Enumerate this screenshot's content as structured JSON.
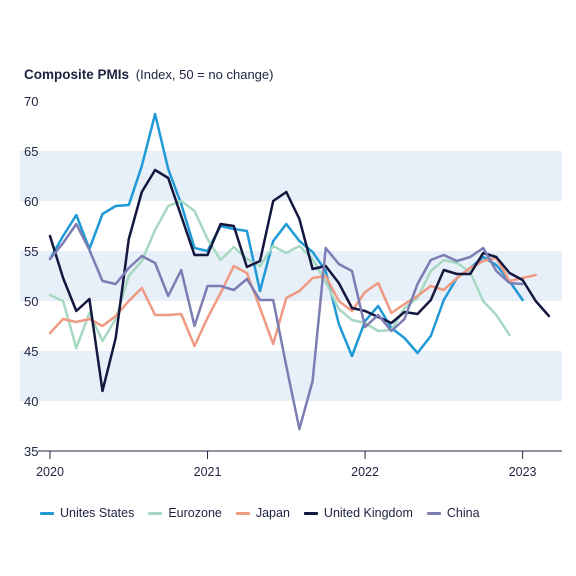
{
  "chart_data": {
    "type": "line",
    "title": "Composite PMIs",
    "subtitle": "(Index, 50 = no change)",
    "ylim": [
      35,
      70
    ],
    "yticks": [
      70,
      65,
      60,
      55,
      50,
      45,
      40,
      35
    ],
    "xlim": [
      2020.0,
      2023.25
    ],
    "xticks": [
      {
        "label": "2020",
        "x": 2020.0
      },
      {
        "label": "2021",
        "x": 2021.0
      },
      {
        "label": "2022",
        "x": 2022.0
      },
      {
        "label": "2023",
        "x": 2023.0
      }
    ],
    "bands": [
      [
        60,
        65
      ],
      [
        50,
        55
      ],
      [
        40,
        45
      ]
    ],
    "band_color": "#e7eff8",
    "legend_position": "bottom",
    "x": [
      2020.0,
      2020.083,
      2020.167,
      2020.25,
      2020.333,
      2020.417,
      2020.5,
      2020.583,
      2020.667,
      2020.75,
      2020.833,
      2020.917,
      2021.0,
      2021.083,
      2021.167,
      2021.25,
      2021.333,
      2021.417,
      2021.5,
      2021.583,
      2021.667,
      2021.75,
      2021.833,
      2021.917,
      2022.0,
      2022.083,
      2022.167,
      2022.25,
      2022.333,
      2022.417,
      2022.5,
      2022.583,
      2022.667,
      2022.75,
      2022.833,
      2022.917,
      2023.0,
      2023.083,
      2023.167,
      2023.25
    ],
    "series": [
      {
        "name": "Unites States",
        "color": "#1f9ad6",
        "values": [
          54.2,
          56.5,
          58.6,
          55.2,
          58.7,
          59.5,
          59.6,
          63.5,
          68.7,
          63.2,
          59.7,
          55.3,
          55.0,
          57.5,
          57.2,
          57.0,
          51.0,
          56.0,
          57.7,
          56.0,
          54.9,
          53.0,
          47.7,
          44.5,
          48.0,
          49.5,
          47.3,
          46.3,
          44.8,
          46.5,
          50.1,
          52.3,
          53.3,
          54.4,
          53.6,
          52.0,
          50.1,
          null,
          null,
          null
        ]
      },
      {
        "name": "Eurozone",
        "color": "#a6d8c2",
        "values": [
          50.6,
          50.0,
          45.3,
          48.8,
          46.0,
          48.2,
          52.5,
          54.0,
          57.1,
          59.5,
          60.0,
          59.0,
          56.2,
          54.1,
          55.4,
          54.2,
          53.5,
          55.5,
          54.8,
          55.5,
          54.2,
          51.9,
          49.2,
          48.1,
          47.8,
          47.0,
          47.1,
          49.3,
          50.3,
          53.0,
          54.1,
          53.8,
          52.9,
          50.0,
          48.6,
          46.6,
          null,
          null,
          null,
          null
        ]
      },
      {
        "name": "Japan",
        "color": "#ef9a83",
        "values": [
          46.8,
          48.2,
          47.9,
          48.2,
          47.5,
          48.5,
          50.0,
          51.3,
          48.6,
          48.6,
          48.7,
          45.5,
          48.3,
          50.8,
          53.5,
          52.8,
          49.3,
          45.7,
          50.3,
          51.0,
          52.3,
          52.5,
          50.0,
          49.0,
          50.9,
          51.8,
          48.8,
          49.7,
          50.5,
          51.5,
          51.1,
          52.3,
          53.3,
          54.0,
          54.3,
          52.0,
          52.3,
          52.6,
          null,
          null
        ]
      },
      {
        "name": "United Kingdom",
        "color": "#14173f",
        "values": [
          56.5,
          52.3,
          49.0,
          50.2,
          41.0,
          46.3,
          56.2,
          60.9,
          63.1,
          62.3,
          58.5,
          54.6,
          54.6,
          57.7,
          57.5,
          53.4,
          54.0,
          60.0,
          60.9,
          58.2,
          53.2,
          53.5,
          51.8,
          49.3,
          49.0,
          48.4,
          47.8,
          48.9,
          48.7,
          50.1,
          53.1,
          52.7,
          52.7,
          54.8,
          54.4,
          52.8,
          52.1,
          50.0,
          48.5,
          null
        ]
      },
      {
        "name": "China",
        "color": "#7b7db3",
        "values": [
          54.2,
          55.8,
          57.7,
          55.1,
          52.0,
          51.7,
          53.3,
          54.5,
          53.8,
          50.5,
          53.1,
          47.5,
          51.5,
          51.5,
          51.1,
          52.2,
          50.1,
          50.1,
          43.5,
          37.2,
          42.0,
          55.3,
          53.7,
          53.0,
          47.4,
          48.6,
          47.0,
          48.2,
          51.7,
          54.1,
          54.6,
          54.0,
          54.4,
          55.3,
          53.0,
          51.8,
          51.7,
          null,
          null,
          null
        ]
      }
    ]
  }
}
